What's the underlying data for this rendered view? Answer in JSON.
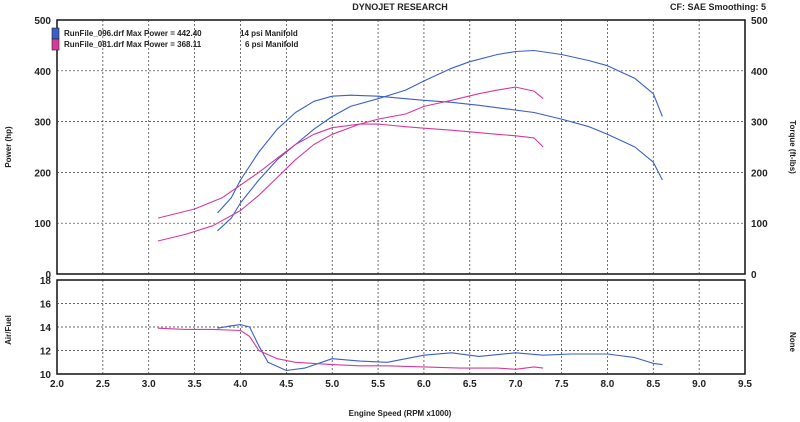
{
  "header": {
    "center_title": "DYNOJET RESEARCH",
    "right_info": "CF: SAE   Smoothing: 5"
  },
  "legend": [
    {
      "label": "RunFile_096.drf Max Power = 442.40",
      "note": "14 psi Manifold",
      "color": "#3a5fc8"
    },
    {
      "label": "RunFile_081.drf Max Power = 368.11",
      "note": "6 psi Manifold",
      "color": "#d63a9a"
    }
  ],
  "chart_data": [
    {
      "type": "line",
      "title": "",
      "xlabel": "Engine Speed (RPM x1000)",
      "ylabel": "Power (hp)",
      "ylabel_right": "Torque (ft-lbs)",
      "xlim": [
        2.0,
        9.5
      ],
      "ylim": [
        0,
        500
      ],
      "x_ticks": [
        "2.0",
        "2.5",
        "3.0",
        "3.5",
        "4.0",
        "4.5",
        "5.0",
        "5.5",
        "6.0",
        "6.5",
        "7.0",
        "7.5",
        "8.0",
        "8.5",
        "9.0",
        "9.5"
      ],
      "y_ticks": [
        "0",
        "100",
        "200",
        "300",
        "400",
        "500"
      ],
      "y_ticks_right": [
        "0",
        "100",
        "200",
        "300",
        "400",
        "500"
      ],
      "grid": true,
      "series": [
        {
          "name": "RunFile_096.drf",
          "measure": "power",
          "color": "#3a5fc8",
          "x": [
            3.75,
            3.9,
            4.0,
            4.2,
            4.4,
            4.6,
            4.8,
            5.0,
            5.2,
            5.5,
            5.8,
            6.0,
            6.3,
            6.5,
            6.8,
            7.0,
            7.2,
            7.5,
            7.8,
            8.0,
            8.3,
            8.5,
            8.6
          ],
          "y": [
            85,
            110,
            140,
            185,
            225,
            255,
            285,
            310,
            330,
            345,
            362,
            380,
            405,
            418,
            432,
            438,
            440,
            432,
            420,
            410,
            385,
            355,
            310
          ]
        },
        {
          "name": "RunFile_096.drf",
          "measure": "torque",
          "color": "#3a5fc8",
          "x": [
            3.75,
            3.9,
            4.0,
            4.2,
            4.4,
            4.6,
            4.8,
            5.0,
            5.2,
            5.5,
            5.8,
            6.0,
            6.3,
            6.6,
            6.9,
            7.2,
            7.5,
            7.8,
            8.0,
            8.3,
            8.5,
            8.6
          ],
          "y": [
            120,
            150,
            185,
            240,
            285,
            318,
            340,
            350,
            352,
            350,
            345,
            342,
            338,
            332,
            325,
            318,
            305,
            290,
            275,
            250,
            220,
            185
          ]
        },
        {
          "name": "RunFile_081.drf",
          "measure": "power",
          "color": "#d63a9a",
          "x": [
            3.1,
            3.4,
            3.7,
            4.0,
            4.2,
            4.4,
            4.6,
            4.8,
            5.0,
            5.3,
            5.5,
            5.8,
            6.0,
            6.3,
            6.6,
            6.8,
            7.0,
            7.2,
            7.3
          ],
          "y": [
            65,
            78,
            95,
            125,
            155,
            190,
            225,
            255,
            275,
            295,
            305,
            315,
            330,
            342,
            355,
            362,
            368,
            360,
            345
          ]
        },
        {
          "name": "RunFile_081.drf",
          "measure": "torque",
          "color": "#d63a9a",
          "x": [
            3.1,
            3.5,
            3.8,
            4.0,
            4.2,
            4.4,
            4.6,
            4.8,
            5.0,
            5.3,
            5.5,
            5.8,
            6.0,
            6.3,
            6.5,
            6.8,
            7.0,
            7.2,
            7.3
          ],
          "y": [
            110,
            128,
            150,
            175,
            200,
            228,
            255,
            275,
            288,
            295,
            295,
            290,
            287,
            283,
            280,
            275,
            272,
            268,
            250
          ]
        }
      ]
    },
    {
      "type": "line",
      "title": "",
      "xlabel": "Engine Speed (RPM x1000)",
      "ylabel": "Air/Fuel",
      "ylabel_right": "None",
      "xlim": [
        2.0,
        9.5
      ],
      "ylim": [
        10,
        18
      ],
      "x_ticks": [
        "2.0",
        "2.5",
        "3.0",
        "3.5",
        "4.0",
        "4.5",
        "5.0",
        "5.5",
        "6.0",
        "6.5",
        "7.0",
        "7.5",
        "8.0",
        "8.5",
        "9.0",
        "9.5"
      ],
      "y_ticks": [
        "10",
        "12",
        "14",
        "16",
        "18"
      ],
      "grid": true,
      "series": [
        {
          "name": "RunFile_096.drf",
          "color": "#3a5fc8",
          "x": [
            3.75,
            3.9,
            4.0,
            4.1,
            4.2,
            4.3,
            4.5,
            4.7,
            5.0,
            5.3,
            5.6,
            6.0,
            6.3,
            6.6,
            7.0,
            7.3,
            7.6,
            8.0,
            8.3,
            8.5,
            8.6
          ],
          "y": [
            13.9,
            14.1,
            14.2,
            14.0,
            12.4,
            11.0,
            10.3,
            10.5,
            11.3,
            11.1,
            11.0,
            11.6,
            11.8,
            11.5,
            11.8,
            11.6,
            11.7,
            11.7,
            11.4,
            10.9,
            10.8
          ]
        },
        {
          "name": "RunFile_081.drf",
          "color": "#d63a9a",
          "x": [
            3.1,
            3.4,
            3.7,
            4.0,
            4.1,
            4.2,
            4.4,
            4.6,
            4.8,
            5.0,
            5.3,
            5.6,
            6.0,
            6.4,
            6.8,
            7.0,
            7.2,
            7.3
          ],
          "y": [
            13.9,
            13.8,
            13.8,
            13.7,
            13.2,
            12.0,
            11.3,
            11.0,
            10.9,
            10.8,
            10.7,
            10.7,
            10.6,
            10.5,
            10.5,
            10.4,
            10.6,
            10.5
          ]
        }
      ]
    }
  ]
}
